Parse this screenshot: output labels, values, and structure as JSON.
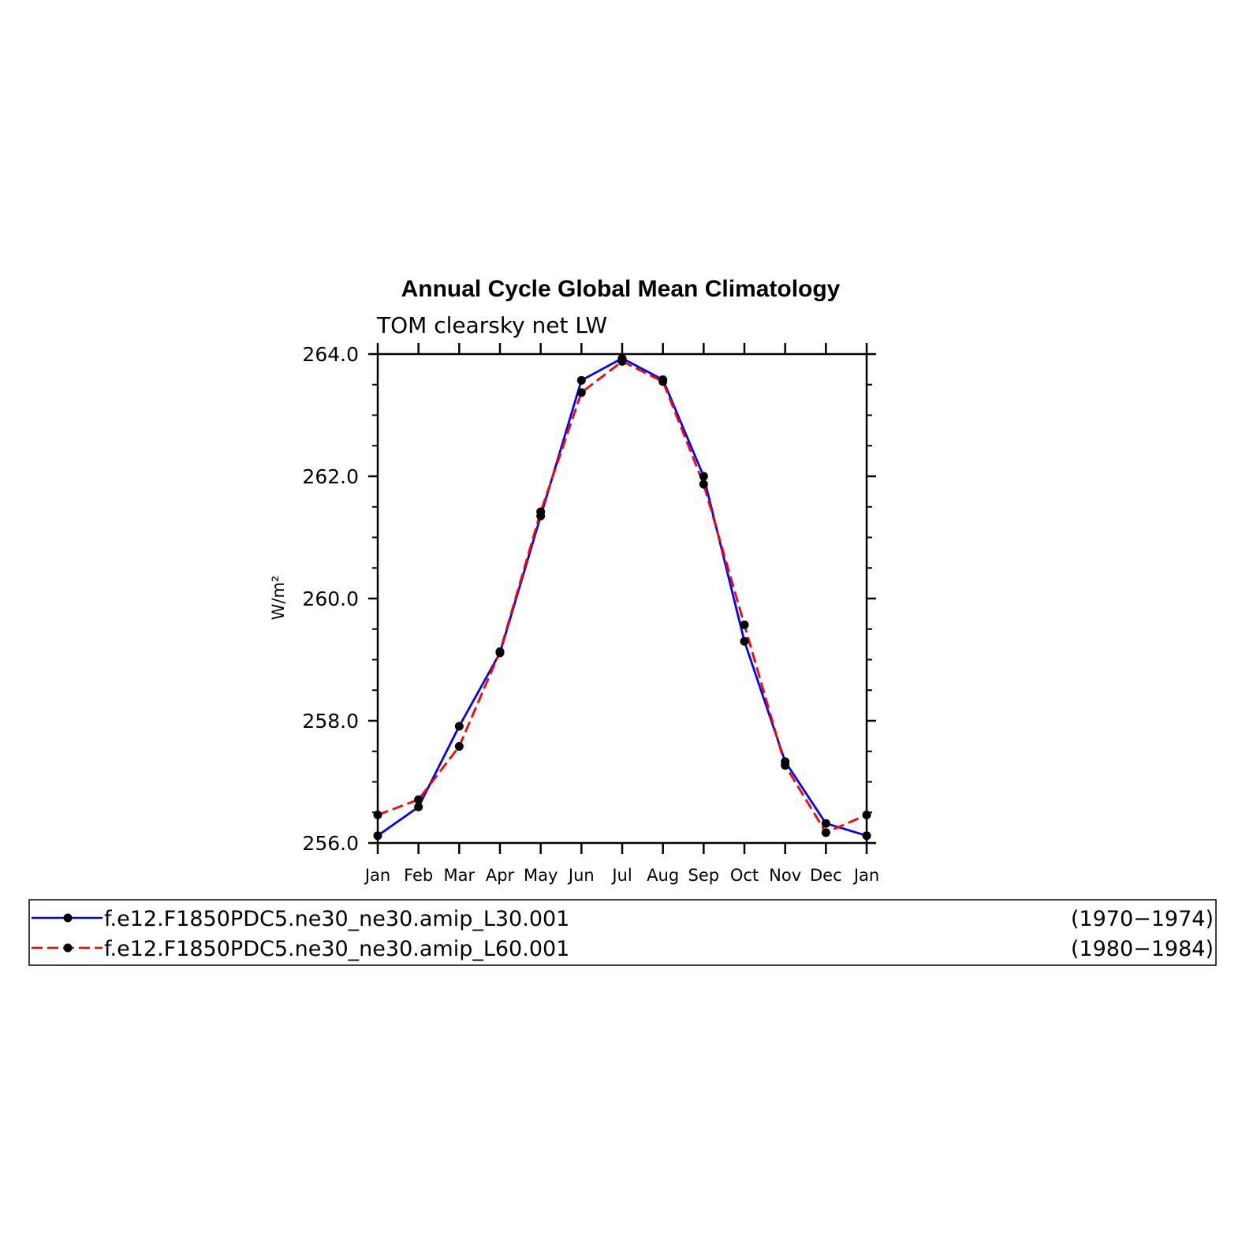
{
  "chart_data": {
    "type": "line",
    "title": "Annual Cycle Global Mean Climatology",
    "subtitle": "TOM clearsky net LW",
    "ylabel": "W/m²",
    "ylim": [
      256.0,
      264.0
    ],
    "yticks": [
      "256.0",
      "258.0",
      "260.0",
      "262.0",
      "264.0"
    ],
    "categories": [
      "Jan",
      "Feb",
      "Mar",
      "Apr",
      "May",
      "Jun",
      "Jul",
      "Aug",
      "Sep",
      "Oct",
      "Nov",
      "Dec",
      "Jan"
    ],
    "grid": false,
    "legend_position": "bottom",
    "series": [
      {
        "name": "f.e12.F1850PDC5.ne30_ne30.amip_L30.001",
        "period": "(1970−1974)",
        "color": "#0000ff",
        "line_style": "solid",
        "values": [
          256.12,
          256.59,
          257.91,
          259.11,
          261.35,
          263.57,
          263.93,
          263.58,
          262.0,
          259.3,
          257.33,
          256.32,
          256.12
        ]
      },
      {
        "name": "f.e12.F1850PDC5.ne30_ne30.amip_L60.001",
        "period": "(1980−1984)",
        "color": "#ff0000",
        "line_style": "dashed",
        "values": [
          256.46,
          256.71,
          257.58,
          259.13,
          261.42,
          263.37,
          263.88,
          263.55,
          261.87,
          259.57,
          257.27,
          256.17,
          256.46
        ]
      }
    ]
  }
}
